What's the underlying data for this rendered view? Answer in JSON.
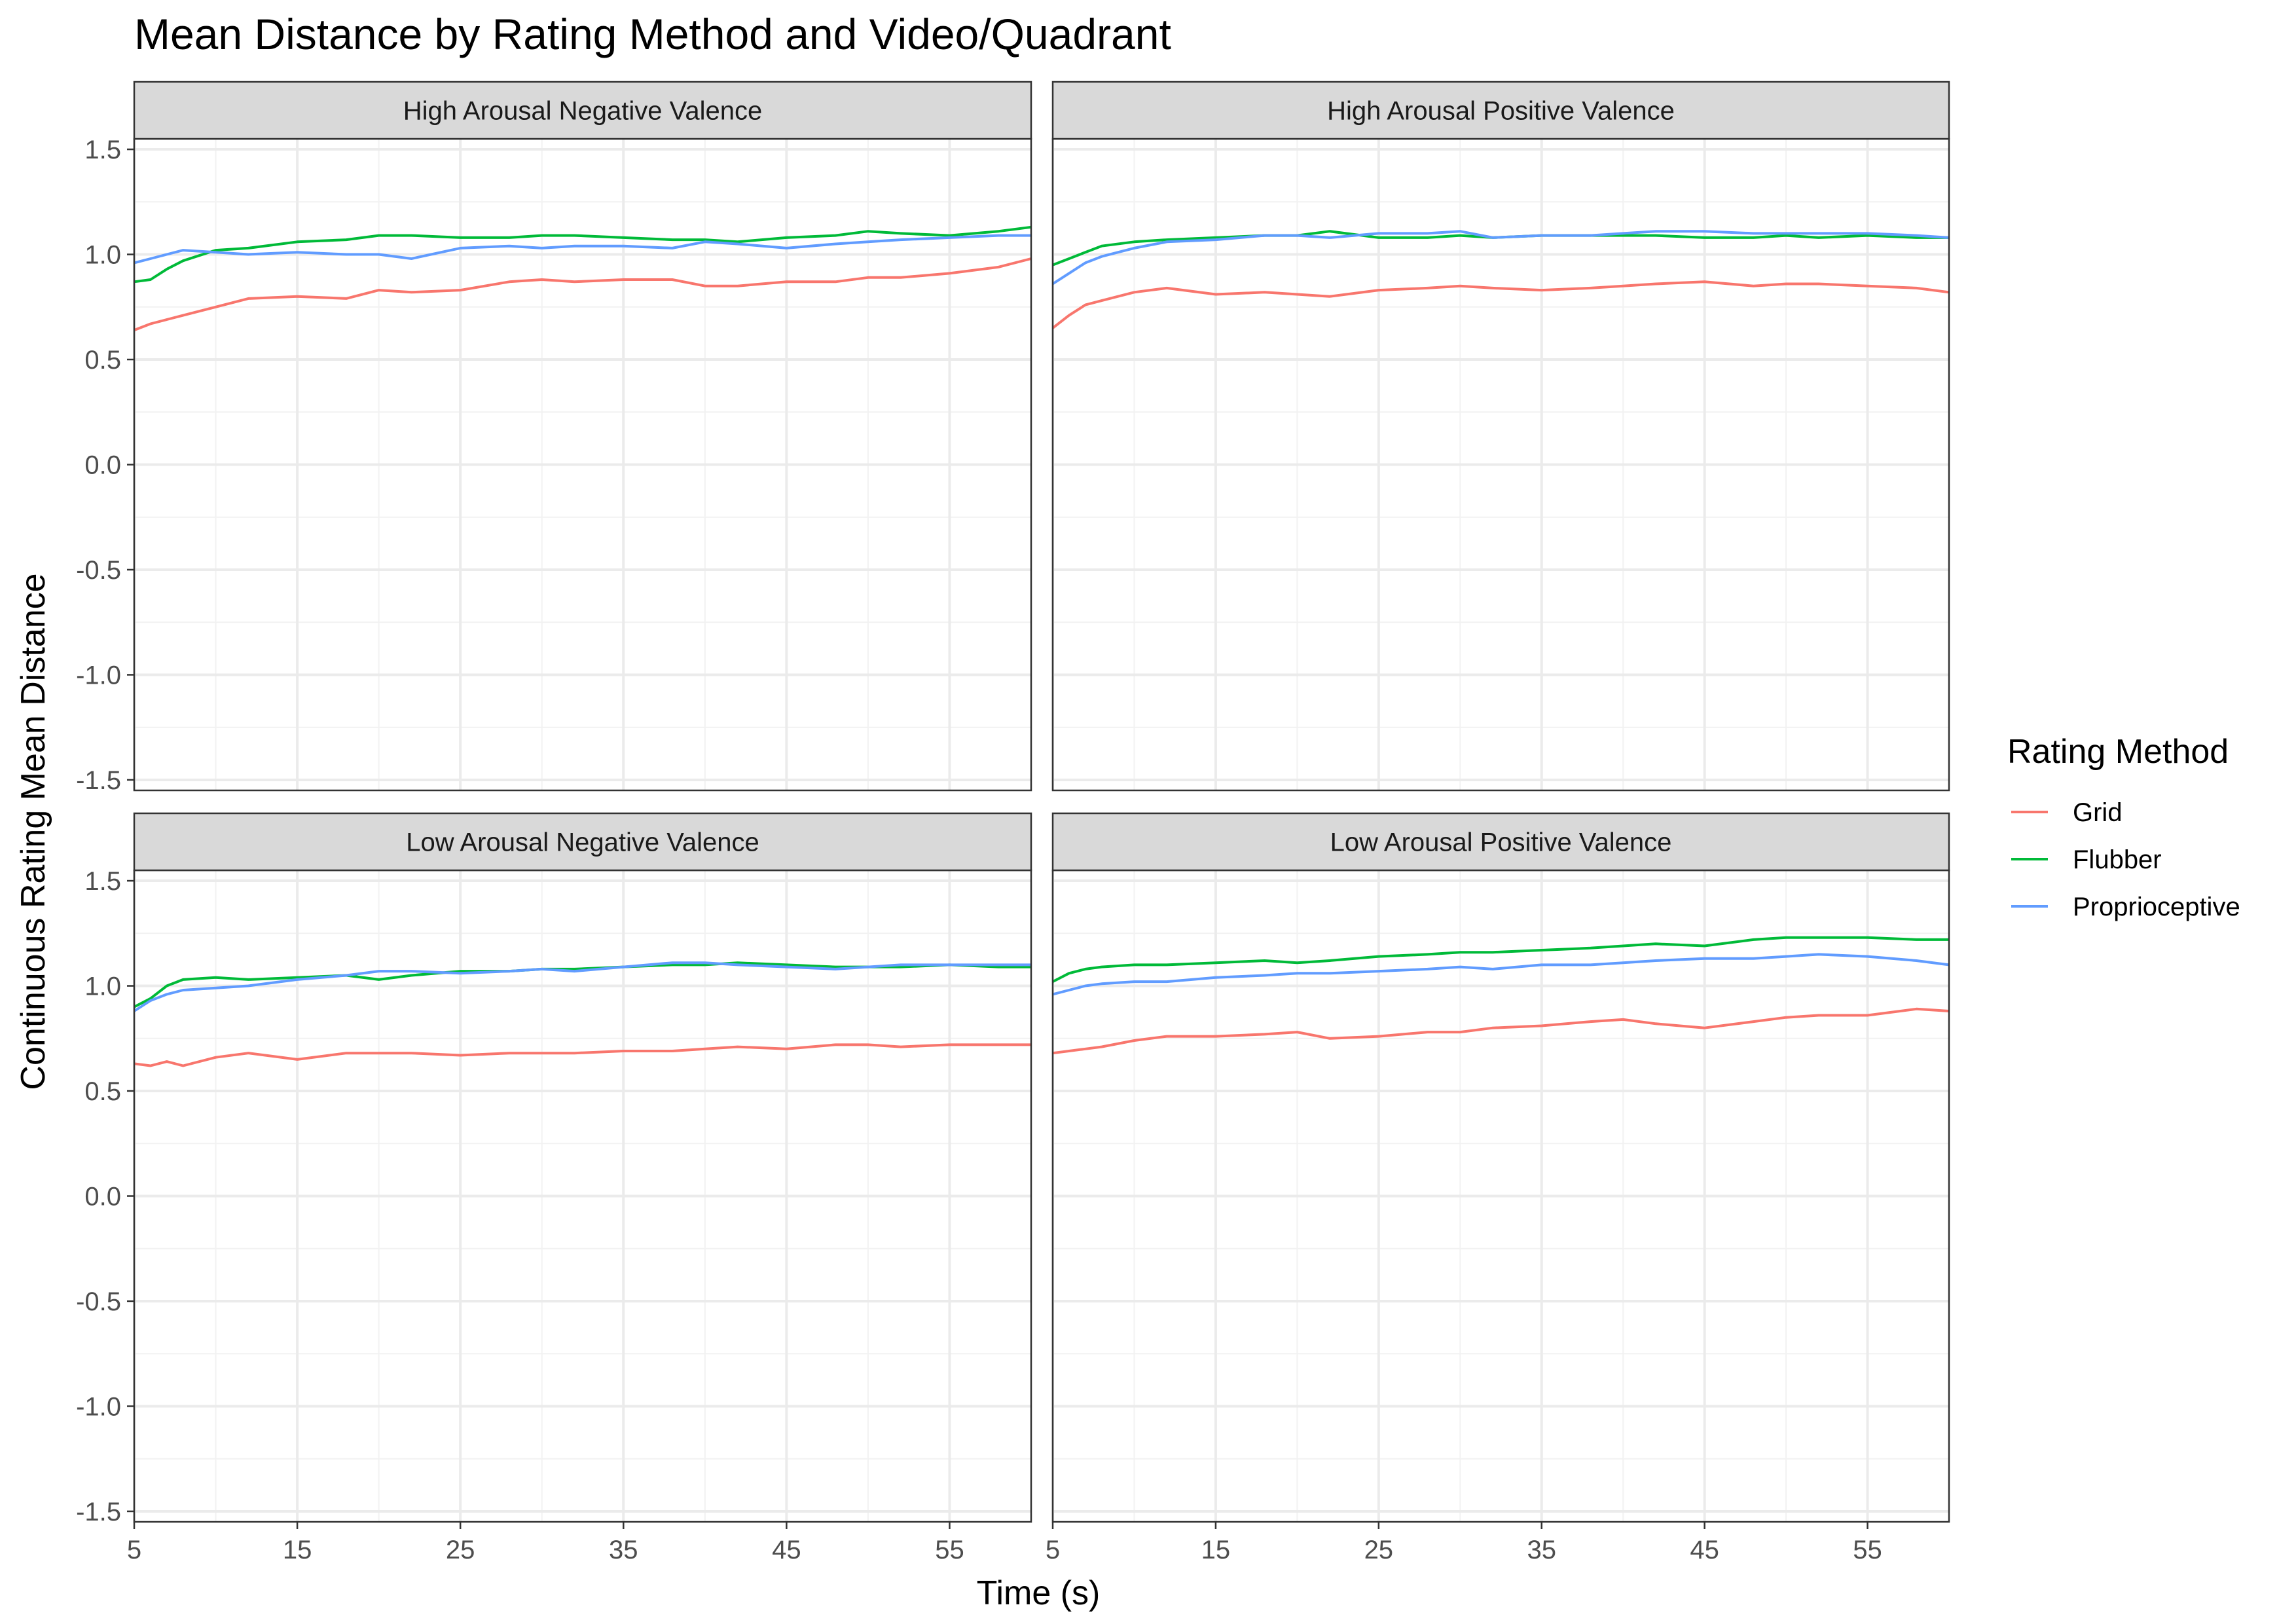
{
  "chart_data": {
    "type": "line",
    "title": "Mean Distance by Rating Method and Video/Quadrant",
    "xlabel": "Time (s)",
    "ylabel": "Continuous Rating Mean Distance",
    "xlim": [
      5,
      60
    ],
    "ylim": [
      -1.55,
      1.55
    ],
    "x_ticks": [
      5,
      15,
      25,
      35,
      45,
      55
    ],
    "y_ticks": [
      -1.5,
      -1.0,
      -0.5,
      0.0,
      0.5,
      1.0,
      1.5
    ],
    "y_tick_labels": [
      "-1.5",
      "-1.0",
      "-0.5",
      "0.0",
      "0.5",
      "1.0",
      "1.5"
    ],
    "grid": true,
    "legend": {
      "title": "Rating Method",
      "position": "right",
      "entries": [
        "Grid",
        "Flubber",
        "Proprioceptive"
      ]
    },
    "colors": {
      "Grid": "#F8766D",
      "Flubber": "#00BA38",
      "Proprioceptive": "#619CFF"
    },
    "x": [
      5,
      6,
      7,
      8,
      10,
      12,
      15,
      18,
      20,
      22,
      25,
      28,
      30,
      32,
      35,
      38,
      40,
      42,
      45,
      48,
      50,
      52,
      55,
      58,
      60
    ],
    "panels": [
      {
        "label": "High Arousal Negative Valence",
        "series": [
          {
            "name": "Grid",
            "values": [
              0.64,
              0.67,
              0.69,
              0.71,
              0.75,
              0.79,
              0.8,
              0.79,
              0.83,
              0.82,
              0.83,
              0.87,
              0.88,
              0.87,
              0.88,
              0.88,
              0.85,
              0.85,
              0.87,
              0.87,
              0.89,
              0.89,
              0.91,
              0.94,
              0.98
            ]
          },
          {
            "name": "Flubber",
            "values": [
              0.87,
              0.88,
              0.93,
              0.97,
              1.02,
              1.03,
              1.06,
              1.07,
              1.09,
              1.09,
              1.08,
              1.08,
              1.09,
              1.09,
              1.08,
              1.07,
              1.07,
              1.06,
              1.08,
              1.09,
              1.11,
              1.1,
              1.09,
              1.11,
              1.13
            ]
          },
          {
            "name": "Proprioceptive",
            "values": [
              0.96,
              0.98,
              1.0,
              1.02,
              1.01,
              1.0,
              1.01,
              1.0,
              1.0,
              0.98,
              1.03,
              1.04,
              1.03,
              1.04,
              1.04,
              1.03,
              1.06,
              1.05,
              1.03,
              1.05,
              1.06,
              1.07,
              1.08,
              1.09,
              1.09
            ]
          }
        ]
      },
      {
        "label": "High Arousal Positive Valence",
        "series": [
          {
            "name": "Grid",
            "values": [
              0.65,
              0.71,
              0.76,
              0.78,
              0.82,
              0.84,
              0.81,
              0.82,
              0.81,
              0.8,
              0.83,
              0.84,
              0.85,
              0.84,
              0.83,
              0.84,
              0.85,
              0.86,
              0.87,
              0.85,
              0.86,
              0.86,
              0.85,
              0.84,
              0.82
            ]
          },
          {
            "name": "Flubber",
            "values": [
              0.95,
              0.98,
              1.01,
              1.04,
              1.06,
              1.07,
              1.08,
              1.09,
              1.09,
              1.11,
              1.08,
              1.08,
              1.09,
              1.08,
              1.09,
              1.09,
              1.09,
              1.09,
              1.08,
              1.08,
              1.09,
              1.08,
              1.09,
              1.08,
              1.08
            ]
          },
          {
            "name": "Proprioceptive",
            "values": [
              0.86,
              0.91,
              0.96,
              0.99,
              1.03,
              1.06,
              1.07,
              1.09,
              1.09,
              1.08,
              1.1,
              1.1,
              1.11,
              1.08,
              1.09,
              1.09,
              1.1,
              1.11,
              1.11,
              1.1,
              1.1,
              1.1,
              1.1,
              1.09,
              1.08
            ]
          }
        ]
      },
      {
        "label": "Low Arousal Negative Valence",
        "series": [
          {
            "name": "Grid",
            "values": [
              0.63,
              0.62,
              0.64,
              0.62,
              0.66,
              0.68,
              0.65,
              0.68,
              0.68,
              0.68,
              0.67,
              0.68,
              0.68,
              0.68,
              0.69,
              0.69,
              0.7,
              0.71,
              0.7,
              0.72,
              0.72,
              0.71,
              0.72,
              0.72,
              0.72
            ]
          },
          {
            "name": "Flubber",
            "values": [
              0.9,
              0.94,
              1.0,
              1.03,
              1.04,
              1.03,
              1.04,
              1.05,
              1.03,
              1.05,
              1.07,
              1.07,
              1.08,
              1.08,
              1.09,
              1.1,
              1.1,
              1.11,
              1.1,
              1.09,
              1.09,
              1.09,
              1.1,
              1.09,
              1.09
            ]
          },
          {
            "name": "Proprioceptive",
            "values": [
              0.88,
              0.93,
              0.96,
              0.98,
              0.99,
              1.0,
              1.03,
              1.05,
              1.07,
              1.07,
              1.06,
              1.07,
              1.08,
              1.07,
              1.09,
              1.11,
              1.11,
              1.1,
              1.09,
              1.08,
              1.09,
              1.1,
              1.1,
              1.1,
              1.1
            ]
          }
        ]
      },
      {
        "label": "Low Arousal Positive Valence",
        "series": [
          {
            "name": "Grid",
            "values": [
              0.68,
              0.69,
              0.7,
              0.71,
              0.74,
              0.76,
              0.76,
              0.77,
              0.78,
              0.75,
              0.76,
              0.78,
              0.78,
              0.8,
              0.81,
              0.83,
              0.84,
              0.82,
              0.8,
              0.83,
              0.85,
              0.86,
              0.86,
              0.89,
              0.88
            ]
          },
          {
            "name": "Flubber",
            "values": [
              1.02,
              1.06,
              1.08,
              1.09,
              1.1,
              1.1,
              1.11,
              1.12,
              1.11,
              1.12,
              1.14,
              1.15,
              1.16,
              1.16,
              1.17,
              1.18,
              1.19,
              1.2,
              1.19,
              1.22,
              1.23,
              1.23,
              1.23,
              1.22,
              1.22
            ]
          },
          {
            "name": "Proprioceptive",
            "values": [
              0.96,
              0.98,
              1.0,
              1.01,
              1.02,
              1.02,
              1.04,
              1.05,
              1.06,
              1.06,
              1.07,
              1.08,
              1.09,
              1.08,
              1.1,
              1.1,
              1.11,
              1.12,
              1.13,
              1.13,
              1.14,
              1.15,
              1.14,
              1.12,
              1.1
            ]
          }
        ]
      }
    ]
  }
}
